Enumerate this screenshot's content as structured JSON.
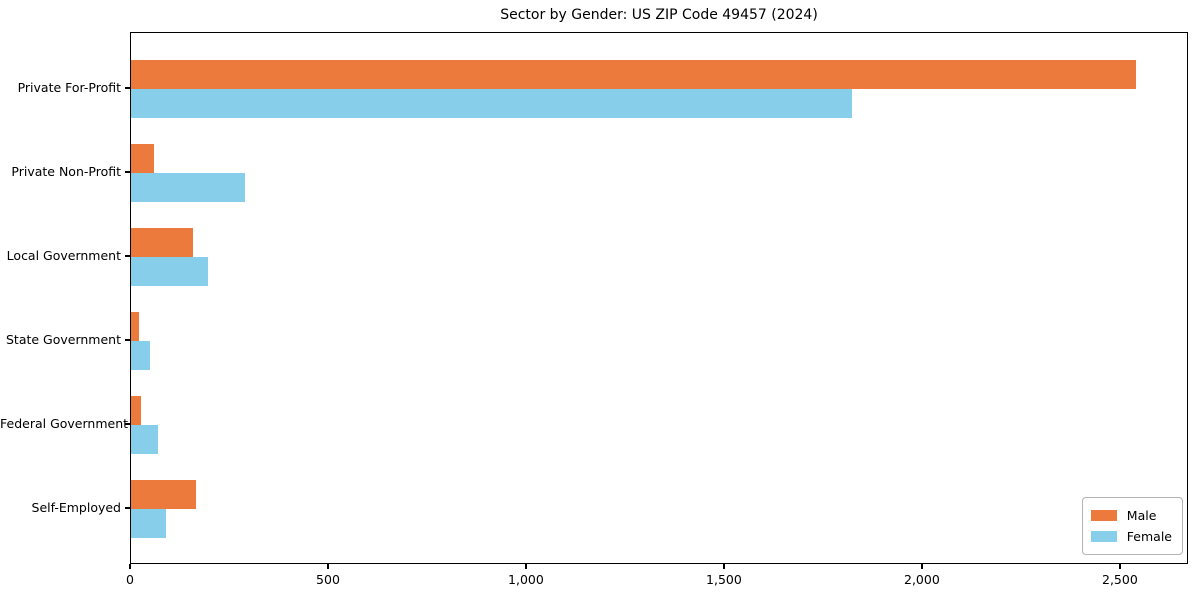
{
  "chart_data": {
    "type": "bar",
    "orientation": "horizontal",
    "title": "Sector by Gender: US ZIP Code 49457 (2024)",
    "categories": [
      "Private For-Profit",
      "Private Non-Profit",
      "Local Government",
      "State Government",
      "Federal Government",
      "Self-Employed"
    ],
    "series": [
      {
        "name": "Male",
        "color": "#EC7A3C",
        "values": [
          2538,
          58,
          157,
          20,
          25,
          164
        ]
      },
      {
        "name": "Female",
        "color": "#87CEEB",
        "values": [
          1820,
          288,
          195,
          48,
          68,
          88
        ]
      }
    ],
    "xlabel": "",
    "ylabel": "",
    "xlim": [
      0,
      2672
    ],
    "xticks": [
      {
        "value": 0,
        "label": "0"
      },
      {
        "value": 500,
        "label": "500"
      },
      {
        "value": 1000,
        "label": "1,000"
      },
      {
        "value": 1500,
        "label": "1,500"
      },
      {
        "value": 2000,
        "label": "2,000"
      },
      {
        "value": 2500,
        "label": "2,500"
      }
    ],
    "grid": false,
    "legend": {
      "position": "lower right",
      "entries": [
        "Male",
        "Female"
      ]
    }
  }
}
